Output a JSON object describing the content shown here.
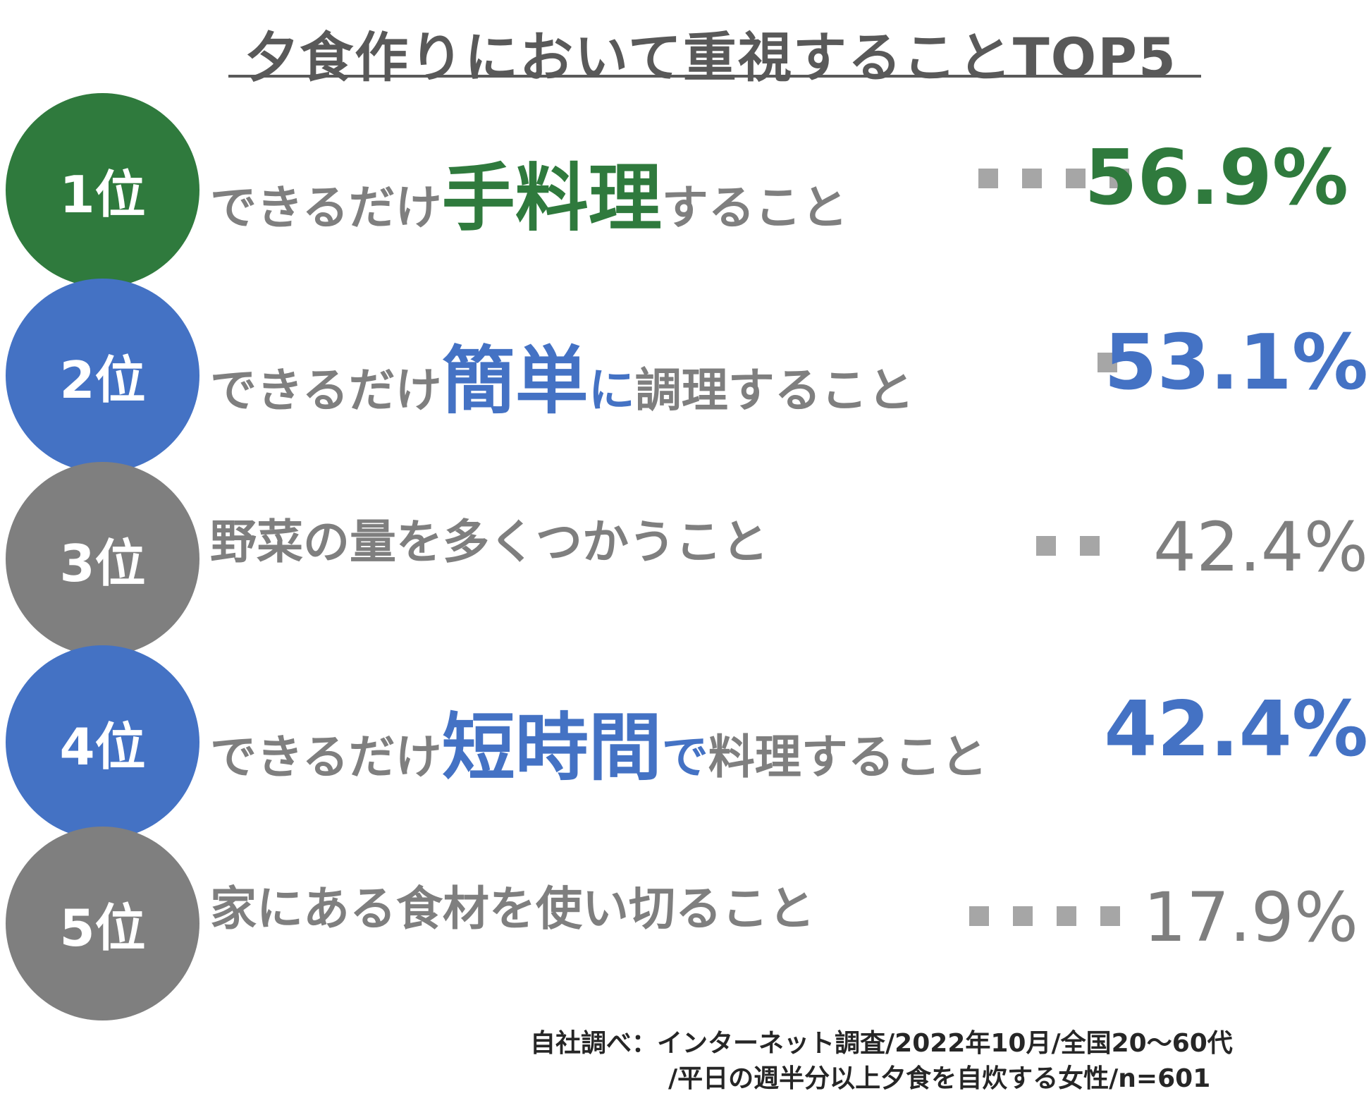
{
  "chart_data": {
    "type": "table",
    "title": "夕食作りにおいて重視することTOP5",
    "rows": [
      {
        "rank": "1位",
        "pre": "できるだけ",
        "emph": "手料理",
        "post": "すること",
        "value_label": "56.9%",
        "value": 56.9,
        "color": "#2f7a3d",
        "dots": 4
      },
      {
        "rank": "2位",
        "pre": "できるだけ",
        "emph": "簡単",
        "post_emph": "に",
        "post": "調理すること",
        "value_label": "53.1%",
        "value": 53.1,
        "color": "#4472c4",
        "dots": 1
      },
      {
        "rank": "3位",
        "pre": "野菜の量を多くつかうこと",
        "emph": "",
        "post": "",
        "value_label": "42.4%",
        "value": 42.4,
        "color": "#7f7f7f",
        "dots": 2
      },
      {
        "rank": "4位",
        "pre": "できるだけ",
        "emph": "短時間",
        "post_emph": "で",
        "post": "料理すること",
        "value_label": "42.4%",
        "value": 42.4,
        "color": "#4472c4",
        "dots": 0
      },
      {
        "rank": "5位",
        "pre": "家にある食材を使い切ること",
        "emph": "",
        "post": "",
        "value_label": "17.9%",
        "value": 17.9,
        "color": "#7f7f7f",
        "dots": 4
      }
    ],
    "source_line1": "自社調べ：インターネット調査/2022年10月/全国20～60代",
    "source_line2": "/平日の週半分以上夕食を自炊する女性/n=601"
  }
}
